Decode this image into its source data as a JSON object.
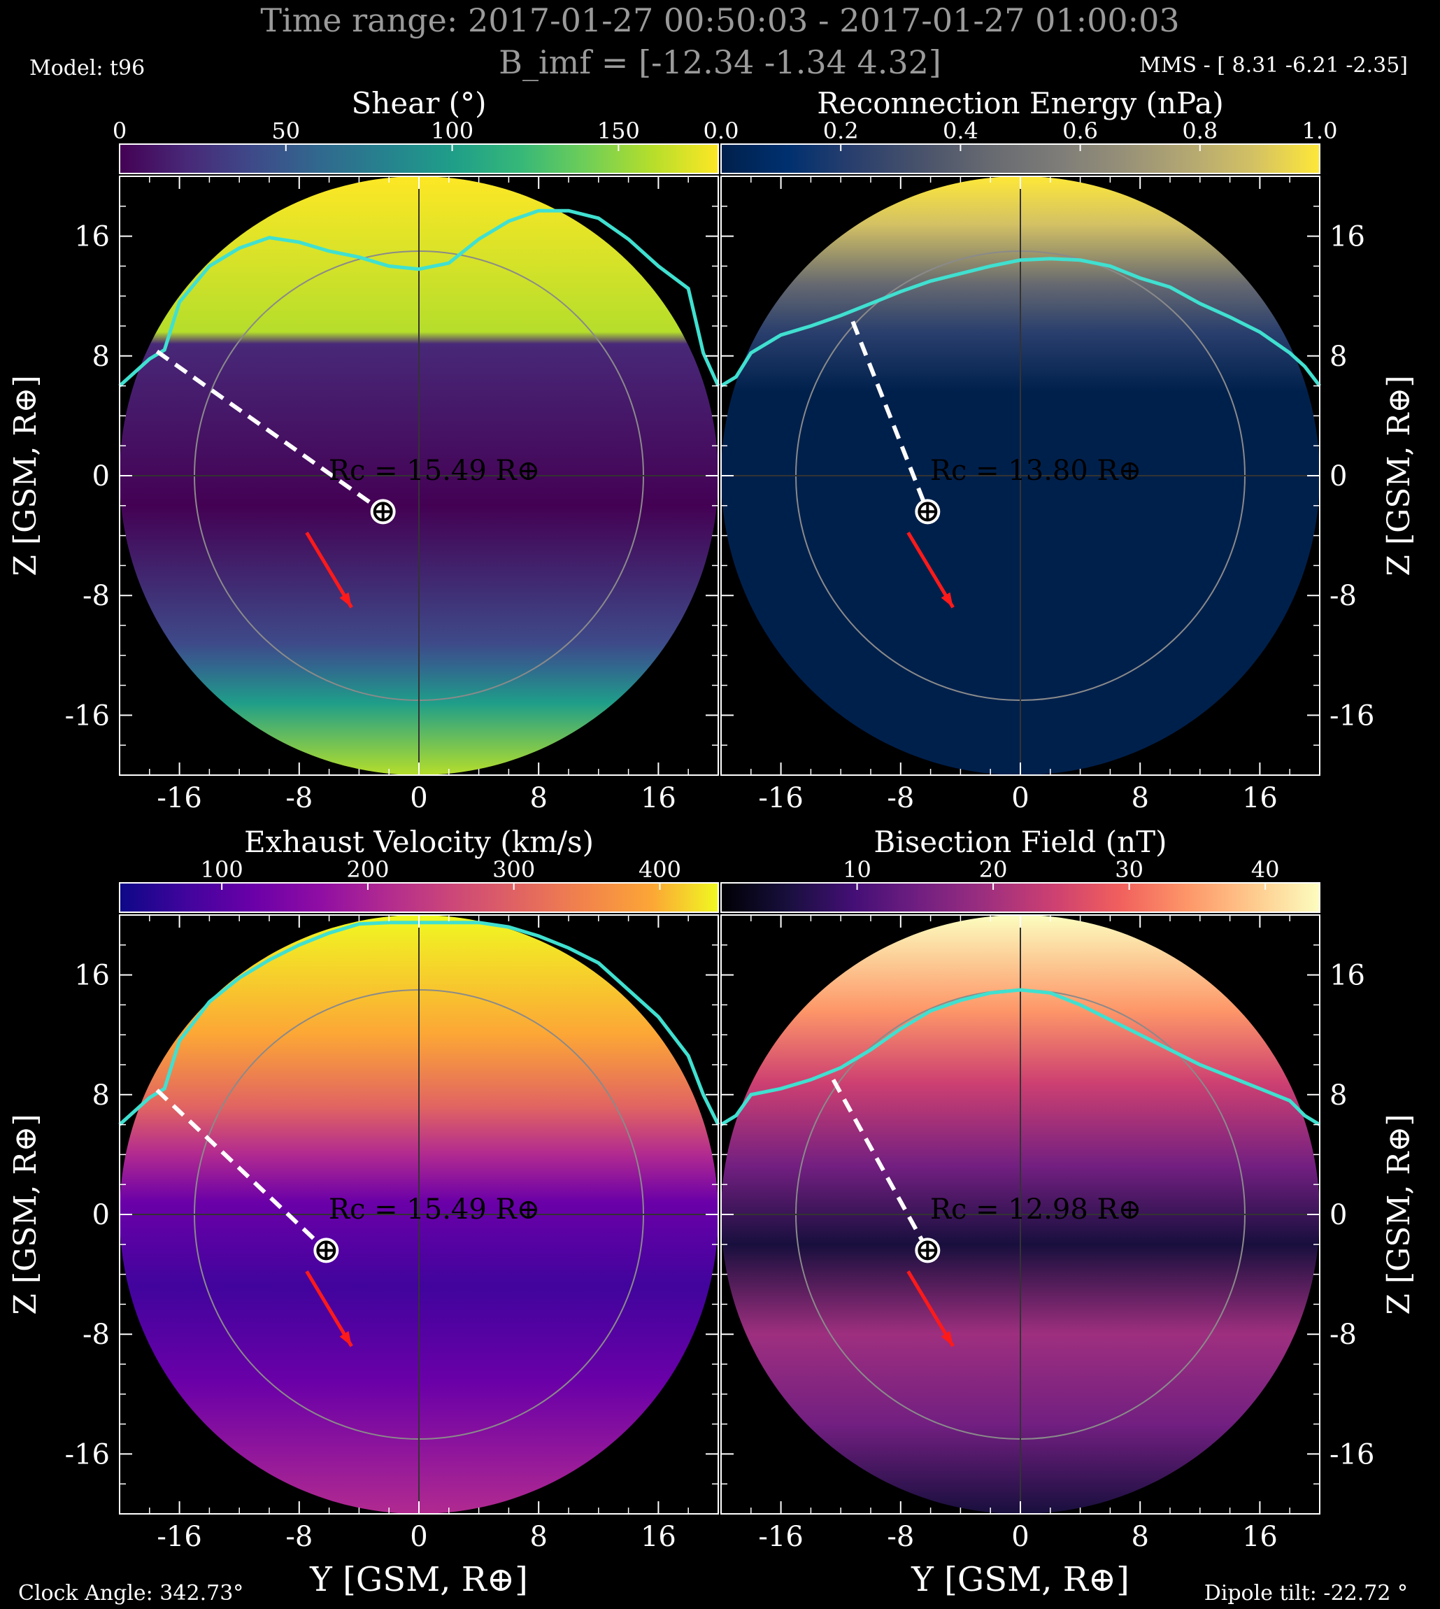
{
  "header": {
    "time_range": "Time range:  2017-01-27 00:50:03 - 2017-01-27 01:00:03",
    "bimf": "B_imf = [-12.34 -1.34 4.32]",
    "model": "Model: t96",
    "mms": "MMS - [ 8.31 -6.21 -2.35]"
  },
  "footer": {
    "clock_angle": "Clock Angle: 342.73°",
    "dipole_tilt": "Dipole tilt: -22.72 °"
  },
  "colors": {
    "background": "#000000",
    "magnetopause_line": "#40e0d0",
    "dashed_line": "#ffffff",
    "arrow": "#ff1a1a",
    "circle": "#8a8a8a"
  },
  "chart_data": [
    {
      "type": "heatmap",
      "panel": "top-left",
      "colorbar_label": "Shear (°)",
      "colormap": "viridis",
      "colorbar_ticks": [
        "0",
        "50",
        "100",
        "150"
      ],
      "colorbar_range": [
        0,
        180
      ],
      "xlabel": "",
      "ylabel": "Z [GSM, R⊕]",
      "xlim": [
        -20,
        20
      ],
      "ylim": [
        -20,
        20
      ],
      "xticks": [
        "-16",
        "-8",
        "0",
        "8",
        "16"
      ],
      "yticks": [
        "16",
        "8",
        "0",
        "-8",
        "-16"
      ],
      "rc_label": "Rc = 15.49 R⊕",
      "earth_marker": {
        "y": -2.4,
        "z": -2.4
      },
      "reconnection_line_end": {
        "y": -17.5,
        "z": 8.3
      },
      "arrow": {
        "y0": -7.5,
        "z0": -3.8,
        "y1": -4.5,
        "z1": -8.8
      },
      "magnetopause": {
        "y": [
          -20,
          -18,
          -17,
          -16,
          -14,
          -12,
          -10,
          -8,
          -6,
          -4,
          -2,
          0,
          2,
          4,
          6,
          8,
          10,
          12,
          14,
          16,
          18,
          19,
          20
        ],
        "z": [
          6.0,
          7.8,
          8.4,
          11.6,
          14.0,
          15.2,
          15.9,
          15.6,
          15.0,
          14.6,
          14.0,
          13.8,
          14.2,
          15.8,
          17.0,
          17.7,
          17.7,
          17.2,
          15.8,
          14.0,
          12.5,
          8.2,
          6.0
        ]
      }
    },
    {
      "type": "heatmap",
      "panel": "top-right",
      "colorbar_label": "Reconnection Energy (nPa)",
      "colormap": "cividis",
      "colorbar_ticks": [
        "0.0",
        "0.2",
        "0.4",
        "0.6",
        "0.8",
        "1.0"
      ],
      "colorbar_range": [
        0,
        1
      ],
      "xlabel": "",
      "ylabel": "Z [GSM, R⊕]",
      "xlim": [
        -20,
        20
      ],
      "ylim": [
        -20,
        20
      ],
      "xticks": [
        "-16",
        "-8",
        "0",
        "8",
        "16"
      ],
      "yticks": [
        "16",
        "8",
        "0",
        "-8",
        "-16"
      ],
      "rc_label": "Rc = 13.80 R⊕",
      "earth_marker": {
        "y": -6.2,
        "z": -2.4
      },
      "reconnection_line_end": {
        "y": -11.2,
        "z": 10.3
      },
      "arrow": {
        "y0": -7.5,
        "z0": -3.8,
        "y1": -4.5,
        "z1": -8.8
      },
      "magnetopause": {
        "y": [
          -20,
          -19,
          -18,
          -16,
          -14,
          -12,
          -10,
          -8,
          -6,
          -4,
          -2,
          0,
          2,
          4,
          6,
          8,
          10,
          12,
          14,
          16,
          18,
          19,
          20
        ],
        "z": [
          6.0,
          6.6,
          8.2,
          9.4,
          10.0,
          10.7,
          11.5,
          12.3,
          13.0,
          13.5,
          14.0,
          14.4,
          14.5,
          14.4,
          14.0,
          13.2,
          12.6,
          11.5,
          10.6,
          9.6,
          8.2,
          7.3,
          6.0
        ]
      }
    },
    {
      "type": "heatmap",
      "panel": "bottom-left",
      "colorbar_label": "Exhaust Velocity (km/s)",
      "colormap": "plasma",
      "colorbar_ticks": [
        "100",
        "200",
        "300",
        "400"
      ],
      "colorbar_range": [
        30,
        440
      ],
      "xlabel": "Y [GSM, R⊕]",
      "ylabel": "Z [GSM, R⊕]",
      "xlim": [
        -20,
        20
      ],
      "ylim": [
        -20,
        20
      ],
      "xticks": [
        "-16",
        "-8",
        "0",
        "8",
        "16"
      ],
      "yticks": [
        "16",
        "8",
        "0",
        "-8",
        "-16"
      ],
      "rc_label": "Rc = 15.49 R⊕",
      "earth_marker": {
        "y": -6.2,
        "z": -2.4
      },
      "reconnection_line_end": {
        "y": -17.5,
        "z": 8.3
      },
      "arrow": {
        "y0": -7.5,
        "z0": -3.8,
        "y1": -4.5,
        "z1": -8.8
      },
      "magnetopause": {
        "y": [
          -20,
          -18,
          -17,
          -16,
          -14,
          -12,
          -10,
          -8,
          -6,
          -4,
          -2,
          0,
          2,
          4,
          6,
          8,
          10,
          12,
          14,
          16,
          18,
          19,
          20
        ],
        "z": [
          6.0,
          7.8,
          8.4,
          11.6,
          14.2,
          15.8,
          17.0,
          18.0,
          18.8,
          19.4,
          19.5,
          19.5,
          19.5,
          19.5,
          19.2,
          18.6,
          17.8,
          16.8,
          15.0,
          13.2,
          10.6,
          8.0,
          6.0
        ]
      }
    },
    {
      "type": "heatmap",
      "panel": "bottom-right",
      "colorbar_label": "Bisection Field (nT)",
      "colormap": "magma",
      "colorbar_ticks": [
        "10",
        "20",
        "30",
        "40"
      ],
      "colorbar_range": [
        0,
        44
      ],
      "xlabel": "Y [GSM, R⊕]",
      "ylabel": "Z [GSM, R⊕]",
      "xlim": [
        -20,
        20
      ],
      "ylim": [
        -20,
        20
      ],
      "xticks": [
        "-16",
        "-8",
        "0",
        "8",
        "16"
      ],
      "yticks": [
        "16",
        "8",
        "0",
        "-8",
        "-16"
      ],
      "rc_label": "Rc = 12.98 R⊕",
      "earth_marker": {
        "y": -6.2,
        "z": -2.4
      },
      "reconnection_line_end": {
        "y": -12.5,
        "z": 9.0
      },
      "arrow": {
        "y0": -7.5,
        "z0": -3.8,
        "y1": -4.5,
        "z1": -8.8
      },
      "magnetopause": {
        "y": [
          -20,
          -19,
          -18,
          -16,
          -14,
          -12,
          -10,
          -8,
          -6,
          -4,
          -2,
          0,
          2,
          4,
          6,
          8,
          10,
          12,
          14,
          16,
          18,
          19,
          20
        ],
        "z": [
          6.0,
          6.6,
          8.0,
          8.4,
          9.0,
          9.8,
          11.0,
          12.4,
          13.6,
          14.3,
          14.8,
          15.0,
          14.8,
          14.0,
          13.0,
          12.0,
          11.0,
          10.0,
          9.2,
          8.4,
          7.6,
          6.6,
          6.0
        ]
      }
    }
  ]
}
